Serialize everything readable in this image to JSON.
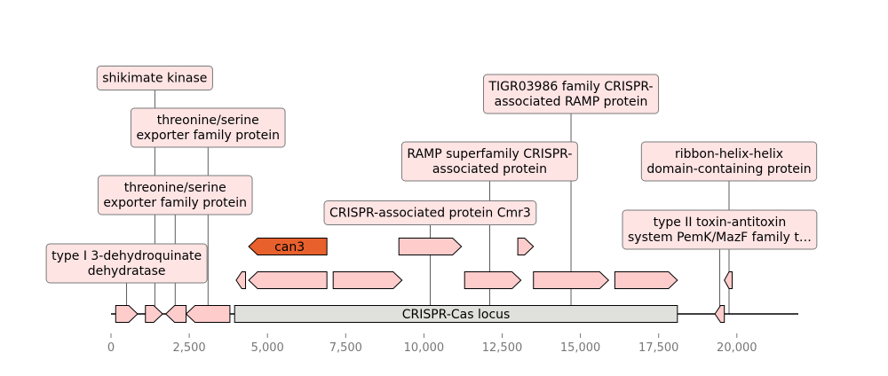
{
  "colors": {
    "gene_fill": "#ffcccc",
    "highlight_fill": "#e8602c",
    "locus_fill": "#e0e0dc",
    "label_bg": "#ffe4e4",
    "label_border": "#7a7a7a",
    "axis": "#777777",
    "outline": "#000000"
  },
  "axis": {
    "min": 0,
    "max": 22000,
    "ticks": [
      0,
      2500,
      5000,
      7500,
      10000,
      12500,
      15000,
      17500,
      20000
    ],
    "tick_labels": [
      "0",
      "2,500",
      "5,000",
      "7,500",
      "10,000",
      "12,500",
      "15,000",
      "17,500",
      "20,000"
    ]
  },
  "locus": {
    "label": "CRISPR-Cas locus",
    "start": 3950,
    "end": 18100
  },
  "genes": [
    {
      "start": 150,
      "end": 850,
      "strand": 1,
      "track": 0
    },
    {
      "start": 1100,
      "end": 1650,
      "strand": 1,
      "track": 0
    },
    {
      "start": 1750,
      "end": 2400,
      "strand": -1,
      "track": 0
    },
    {
      "start": 2400,
      "end": 3800,
      "strand": -1,
      "track": 0
    },
    {
      "start": 19300,
      "end": 19600,
      "strand": -1,
      "track": 0
    },
    {
      "start": 4000,
      "end": 4300,
      "strand": -1,
      "track": 1
    },
    {
      "start": 4400,
      "end": 6900,
      "strand": -1,
      "track": 1
    },
    {
      "start": 7100,
      "end": 9300,
      "strand": 1,
      "track": 1
    },
    {
      "start": 11300,
      "end": 13100,
      "strand": 1,
      "track": 1
    },
    {
      "start": 13500,
      "end": 15900,
      "strand": 1,
      "track": 1
    },
    {
      "start": 16100,
      "end": 18100,
      "strand": 1,
      "track": 1
    },
    {
      "start": 19600,
      "end": 19850,
      "strand": -1,
      "track": 1
    },
    {
      "start": 4400,
      "end": 6900,
      "strand": -1,
      "track": 2,
      "label": "can3",
      "highlight": true
    },
    {
      "start": 9200,
      "end": 11200,
      "strand": 1,
      "track": 2
    },
    {
      "start": 13000,
      "end": 13500,
      "strand": 1,
      "track": 2
    }
  ],
  "annotations": [
    {
      "lines": [
        "type I 3-dehydroquinate",
        "dehydratase"
      ],
      "pos": 500
    },
    {
      "lines": [
        "shikimate kinase"
      ],
      "pos": 1400
    },
    {
      "lines": [
        "threonine/serine",
        "exporter family protein"
      ],
      "pos": 2050
    },
    {
      "lines": [
        "threonine/serine",
        "exporter family protein"
      ],
      "pos": 3100
    },
    {
      "lines": [
        "CRISPR-associated protein Cmr3"
      ],
      "pos": 10200
    },
    {
      "lines": [
        "RAMP superfamily CRISPR-",
        "associated protein"
      ],
      "pos": 12100
    },
    {
      "lines": [
        "TIGR03986 family CRISPR-",
        "associated RAMP protein"
      ],
      "pos": 14700
    },
    {
      "lines": [
        "type II toxin-antitoxin",
        "system PemK/MazF family t…"
      ],
      "pos": 19450
    },
    {
      "lines": [
        "ribbon-helix-helix",
        "domain-containing protein"
      ],
      "pos": 19750
    }
  ]
}
